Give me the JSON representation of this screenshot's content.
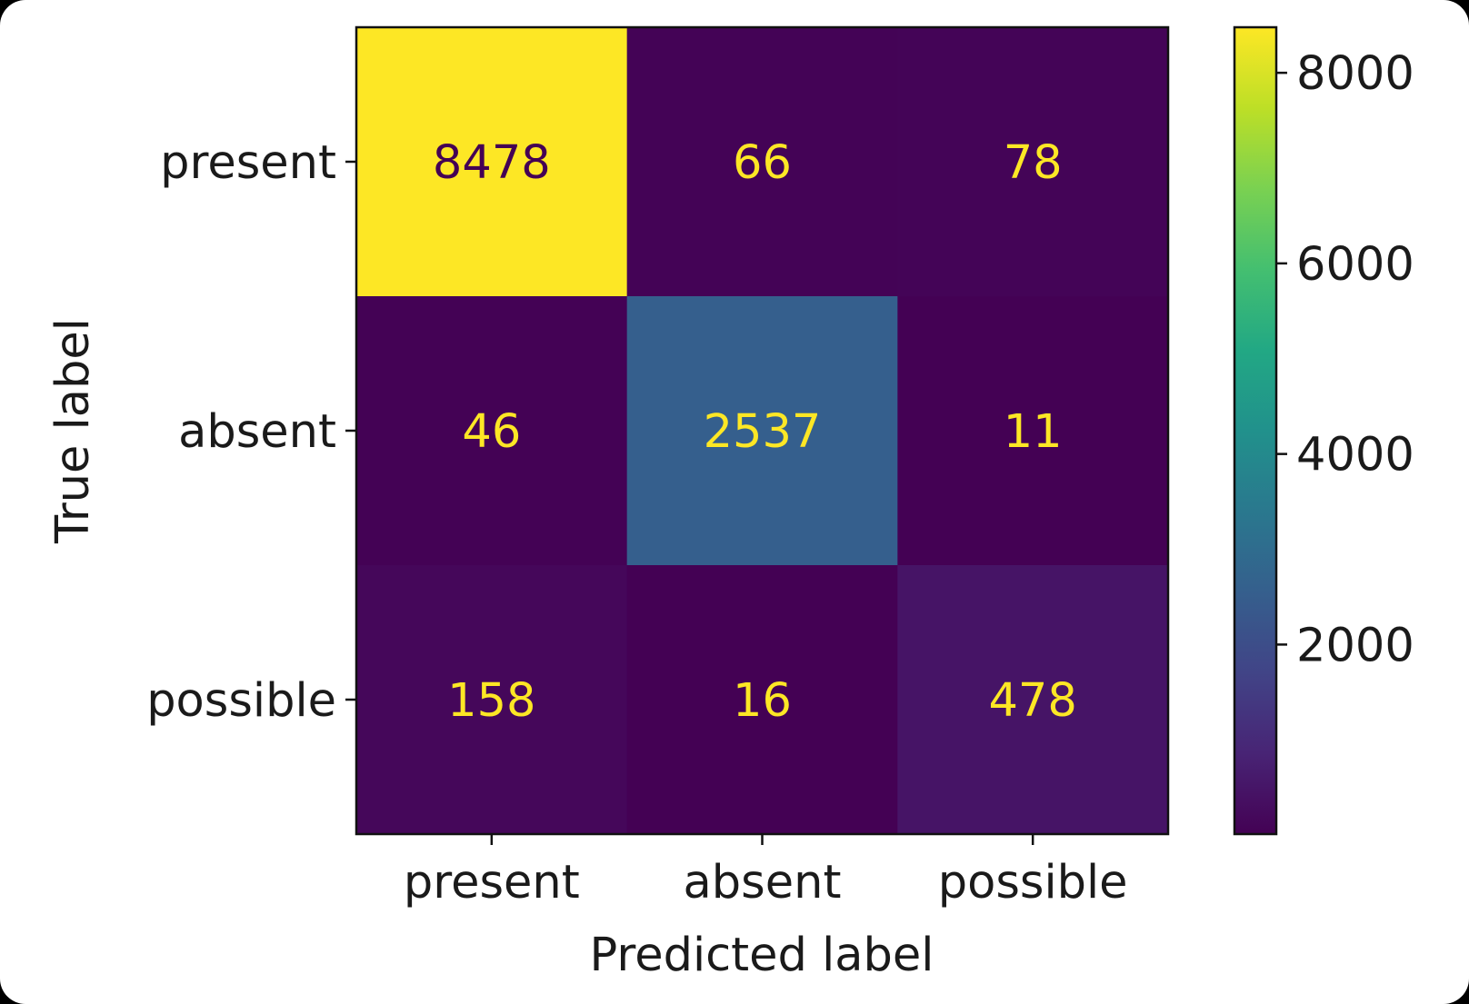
{
  "chart_data": {
    "type": "heatmap",
    "title": "",
    "xlabel": "Predicted label",
    "ylabel": "True label",
    "x_categories": [
      "present",
      "absent",
      "possible"
    ],
    "y_categories": [
      "present",
      "absent",
      "possible"
    ],
    "values": [
      [
        8478,
        66,
        78
      ],
      [
        46,
        2537,
        11
      ],
      [
        158,
        16,
        478
      ]
    ],
    "colormap": "viridis",
    "value_range": [
      11,
      8478
    ],
    "colorbar": {
      "ticks": [
        2000,
        4000,
        6000,
        8000
      ],
      "tick_labels": [
        "2000",
        "4000",
        "6000",
        "8000"
      ]
    },
    "colors": {
      "low": "#440154",
      "high": "#fde725",
      "text_on_dark": "#fde725",
      "text_on_light": "#440154"
    }
  }
}
